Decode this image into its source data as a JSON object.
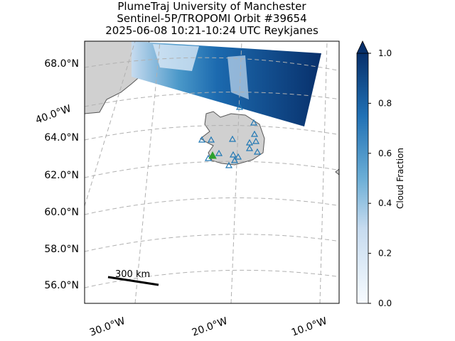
{
  "title": [
    "PlumeTraj    University of Manchester",
    "Sentinel-5P/TROPOMI Orbit #39654",
    "2025-06-08   10:21-10:24 UTC   Reykjanes"
  ],
  "lat_labels": [
    "68.0°N",
    "64.0°N",
    "62.0°N",
    "60.0°N",
    "58.0°N",
    "56.0°N"
  ],
  "lon_labels": [
    "40.0°W",
    "30.0°W",
    "20.0°W",
    "10.0°W"
  ],
  "scale_bar": "300 km",
  "colorbar": {
    "label": "Cloud Fraction",
    "lim": [
      0,
      1
    ],
    "ticks": [
      {
        "value": 0,
        "label": "0.0"
      },
      {
        "value": 0.2,
        "label": "0.2"
      },
      {
        "value": 0.4,
        "label": "0.4"
      },
      {
        "value": 0.6,
        "label": "0.6"
      },
      {
        "value": 0.8,
        "label": "0.8"
      },
      {
        "value": 1,
        "label": "1.0"
      }
    ]
  }
}
